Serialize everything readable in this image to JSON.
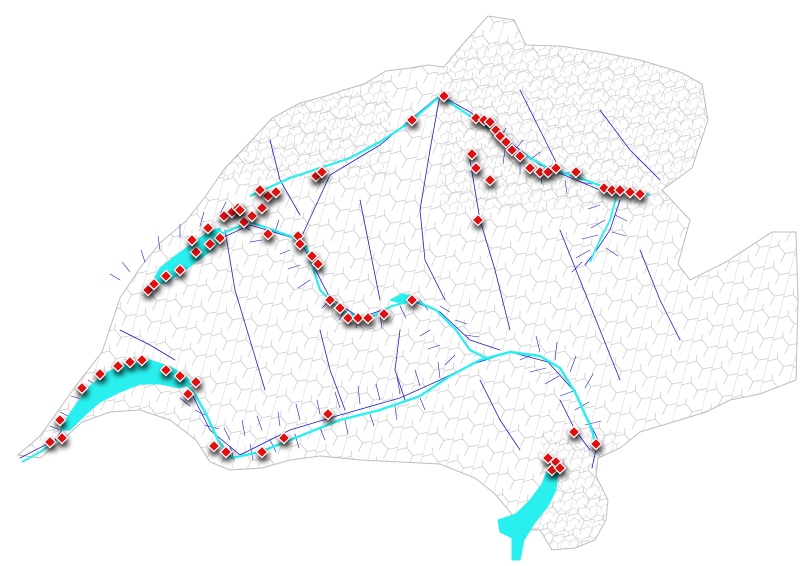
{
  "colors": {
    "background": "#ffffff",
    "municipal_borders": "#b9b9b9",
    "rivers": "#1f1fc8",
    "lakes_highlight": "#29f0ee",
    "marker_fill": "#e01010",
    "marker_border": "#ffffff",
    "marker_shadow": "#000000"
  },
  "legend": null,
  "layers": [
    {
      "name": "municipal-boundaries",
      "icon": "grid-lines"
    },
    {
      "name": "river-network",
      "icon": "waterway"
    },
    {
      "name": "highlighted-waterways",
      "icon": "lake"
    },
    {
      "name": "site-markers",
      "icon": "diamond-marker"
    }
  ]
}
